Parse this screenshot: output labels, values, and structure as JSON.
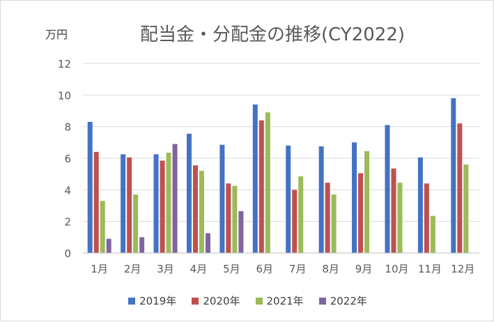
{
  "chart_data": {
    "type": "bar",
    "title": "配当金・分配金の推移(CY2022)",
    "unit_label": "万円",
    "xlabel": "",
    "ylabel": "",
    "ylim": [
      0,
      12
    ],
    "yticks": [
      "0",
      "2",
      "4",
      "6",
      "8",
      "10",
      "12"
    ],
    "grid": true,
    "legend_position": "bottom",
    "categories": [
      "1月",
      "2月",
      "3月",
      "4月",
      "5月",
      "6月",
      "7月",
      "8月",
      "9月",
      "10月",
      "11月",
      "12月"
    ],
    "series": [
      {
        "name": "2019年",
        "color": "#4472c4",
        "values": [
          8.3,
          6.25,
          6.25,
          7.55,
          6.85,
          9.4,
          6.8,
          6.75,
          7.0,
          8.1,
          6.05,
          9.8
        ]
      },
      {
        "name": "2020年",
        "color": "#c0504d",
        "values": [
          6.4,
          6.05,
          5.85,
          5.55,
          4.4,
          8.4,
          4.0,
          4.45,
          5.05,
          5.35,
          4.4,
          8.2
        ]
      },
      {
        "name": "2021年",
        "color": "#9bbb59",
        "values": [
          3.3,
          3.7,
          6.35,
          5.2,
          4.25,
          8.9,
          4.85,
          3.7,
          6.45,
          4.45,
          2.35,
          5.6
        ]
      },
      {
        "name": "2022年",
        "color": "#8064a2",
        "values": [
          0.9,
          1.0,
          6.9,
          1.25,
          2.65,
          null,
          null,
          null,
          null,
          null,
          null,
          null
        ]
      }
    ]
  }
}
